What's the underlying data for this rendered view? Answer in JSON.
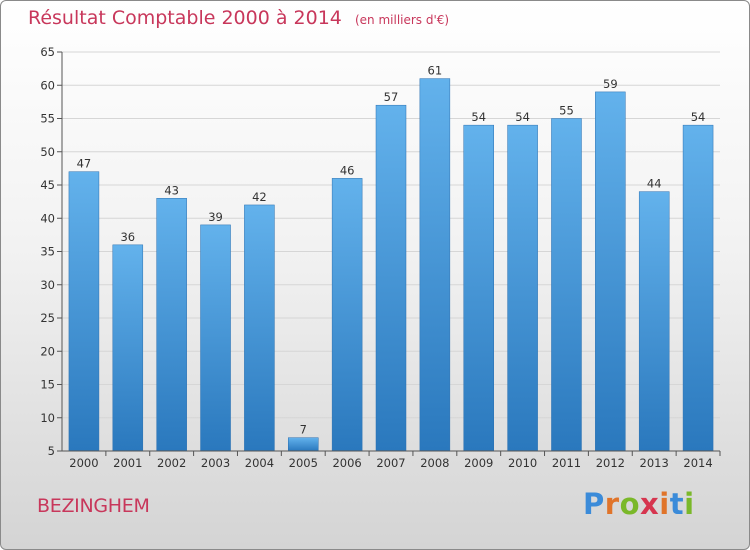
{
  "chart_data": {
    "type": "bar",
    "title": "Résultat Comptable 2000 à 2014",
    "subtitle": "(en milliers d'€)",
    "categories": [
      "2000",
      "2001",
      "2002",
      "2003",
      "2004",
      "2005",
      "2006",
      "2007",
      "2008",
      "2009",
      "2010",
      "2011",
      "2012",
      "2013",
      "2014"
    ],
    "values": [
      47,
      36,
      43,
      39,
      42,
      7,
      46,
      57,
      61,
      54,
      54,
      55,
      59,
      44,
      54
    ],
    "ylim": [
      5,
      65
    ],
    "yticks": [
      5,
      10,
      15,
      20,
      25,
      30,
      35,
      40,
      45,
      50,
      55,
      60,
      65
    ],
    "grid": true,
    "bar_color": "#3d8fd4",
    "xlabel": "",
    "ylabel": ""
  },
  "place_name": "BEZINGHEM",
  "logo": {
    "letters": [
      "P",
      "r",
      "o",
      "x",
      "i",
      "t",
      "i"
    ],
    "colors": [
      "#3b8bd9",
      "#e0742a",
      "#7ab829",
      "#d6354f",
      "#e0742a",
      "#3b8bd9",
      "#7ab829"
    ]
  },
  "colors": {
    "title": "#c8375b",
    "bar_light": "#63b2ec",
    "bar_dark": "#2a78bd"
  }
}
